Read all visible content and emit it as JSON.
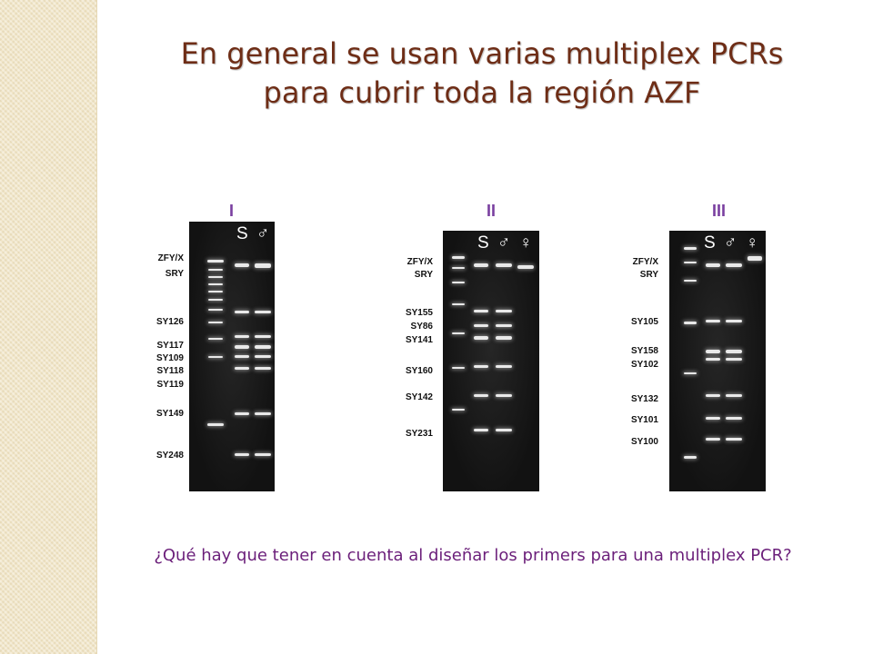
{
  "title": {
    "line1": "En general se usan varias multiplex PCRs",
    "line2": "para cubrir toda la región AZF"
  },
  "panels": [
    {
      "label": "I",
      "lane_headers": [
        "S",
        "♂"
      ],
      "marker_labels": [
        "ZFY/X",
        "SRY",
        "SY126",
        "SY117",
        "SY109",
        "SY118",
        "SY119",
        "SY149",
        "SY248"
      ]
    },
    {
      "label": "II",
      "lane_headers": [
        "S",
        "♂",
        "♀"
      ],
      "marker_labels": [
        "ZFY/X",
        "SRY",
        "SY155",
        "SY86",
        "SY141",
        "SY160",
        "SY142",
        "SY231"
      ]
    },
    {
      "label": "III",
      "lane_headers": [
        "S",
        "♂",
        "♀"
      ],
      "marker_labels": [
        "ZFY/X",
        "SRY",
        "SY105",
        "SY158",
        "SY102",
        "SY132",
        "SY101",
        "SY100"
      ]
    }
  ],
  "question": "¿Qué hay que tener en cuenta al diseñar los primers para una multiplex PCR?",
  "colors": {
    "title": "#6e2d16",
    "panel_label": "#7a3fa0",
    "question": "#6b1f7a",
    "side_band": "#f1e6c9",
    "gel_background": "#141414"
  }
}
